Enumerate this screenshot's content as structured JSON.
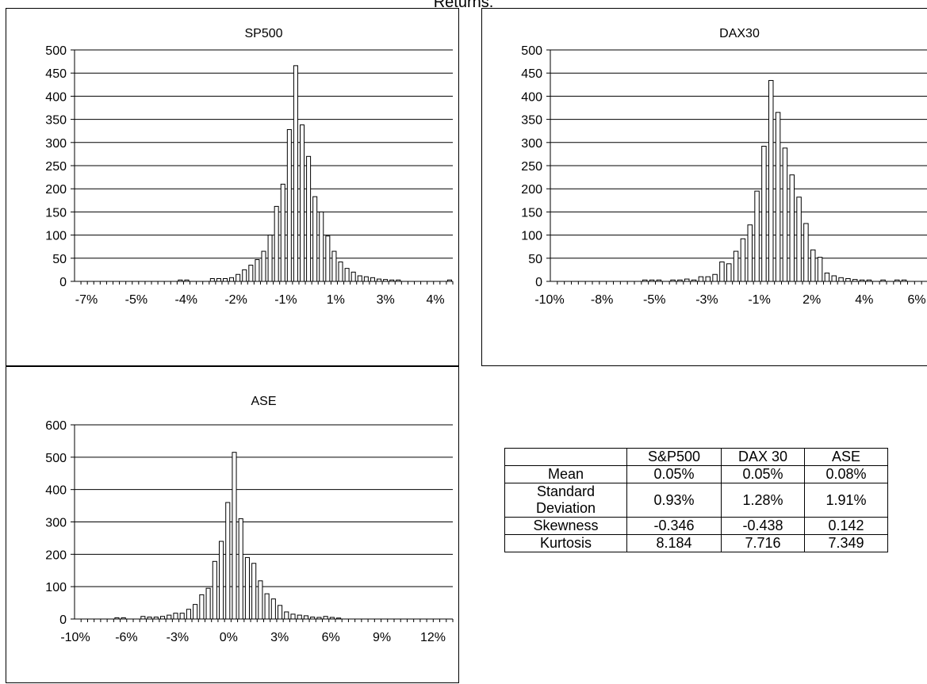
{
  "page_title": "Returns.",
  "chart_data": [
    {
      "type": "bar",
      "title": "SP500",
      "ylim": [
        0,
        500
      ],
      "yticks": [
        0,
        50,
        100,
        150,
        200,
        250,
        300,
        350,
        400,
        450,
        500
      ],
      "xtick_labels": [
        "-7%",
        "-5%",
        "-4%",
        "-2%",
        "-1%",
        "1%",
        "3%",
        "4%"
      ],
      "grid": true,
      "values": [
        0,
        0,
        0,
        0,
        0,
        0,
        0,
        0,
        0,
        0,
        0,
        0,
        0,
        0,
        0,
        0,
        3,
        3,
        0,
        0,
        0,
        6,
        6,
        6,
        8,
        15,
        25,
        35,
        47,
        65,
        100,
        162,
        210,
        328,
        466,
        338,
        270,
        183,
        150,
        98,
        65,
        42,
        28,
        20,
        12,
        10,
        8,
        5,
        4,
        3,
        3,
        0,
        0,
        0,
        0,
        0,
        0,
        0,
        3
      ]
    },
    {
      "type": "bar",
      "title": "DAX30",
      "ylim": [
        0,
        500
      ],
      "yticks": [
        0,
        50,
        100,
        150,
        200,
        250,
        300,
        350,
        400,
        450,
        500
      ],
      "xtick_labels": [
        "-10%",
        "-8%",
        "-5%",
        "-3%",
        "-1%",
        "2%",
        "4%",
        "6%"
      ],
      "grid": true,
      "values": [
        0,
        0,
        0,
        0,
        0,
        0,
        0,
        0,
        0,
        0,
        0,
        0,
        0,
        3,
        3,
        3,
        0,
        3,
        3,
        5,
        3,
        10,
        10,
        15,
        42,
        38,
        65,
        92,
        122,
        195,
        292,
        434,
        365,
        288,
        230,
        182,
        125,
        68,
        52,
        18,
        12,
        8,
        6,
        4,
        3,
        3,
        0,
        3,
        0,
        3,
        3,
        0,
        0,
        0
      ]
    },
    {
      "type": "bar",
      "title": "ASE",
      "ylim": [
        0,
        600
      ],
      "yticks": [
        0,
        100,
        200,
        300,
        400,
        500,
        600
      ],
      "xtick_labels": [
        "-10%",
        "-6%",
        "-3%",
        "0%",
        "3%",
        "6%",
        "9%",
        "12%"
      ],
      "grid": true,
      "values": [
        0,
        0,
        0,
        0,
        0,
        0,
        4,
        4,
        0,
        0,
        8,
        6,
        6,
        8,
        12,
        18,
        18,
        30,
        45,
        75,
        95,
        178,
        240,
        360,
        515,
        310,
        190,
        172,
        118,
        78,
        62,
        42,
        22,
        15,
        12,
        10,
        6,
        5,
        8,
        5,
        3,
        0,
        0,
        0,
        0,
        0,
        0,
        0,
        0,
        0,
        0,
        0,
        0,
        0,
        0,
        0,
        0,
        0
      ]
    }
  ],
  "stats_table": {
    "headers": [
      "",
      "S&P500",
      "DAX 30",
      "ASE"
    ],
    "rows": [
      {
        "label": "Mean",
        "values": [
          "0.05%",
          "0.05%",
          "0.08%"
        ]
      },
      {
        "label": "Standard Deviation",
        "values": [
          "0.93%",
          "1.28%",
          "1.91%"
        ]
      },
      {
        "label": "Skewness",
        "values": [
          "-0.346",
          "-0.438",
          "0.142"
        ]
      },
      {
        "label": "Kurtosis",
        "values": [
          "8.184",
          "7.716",
          "7.349"
        ]
      }
    ]
  }
}
